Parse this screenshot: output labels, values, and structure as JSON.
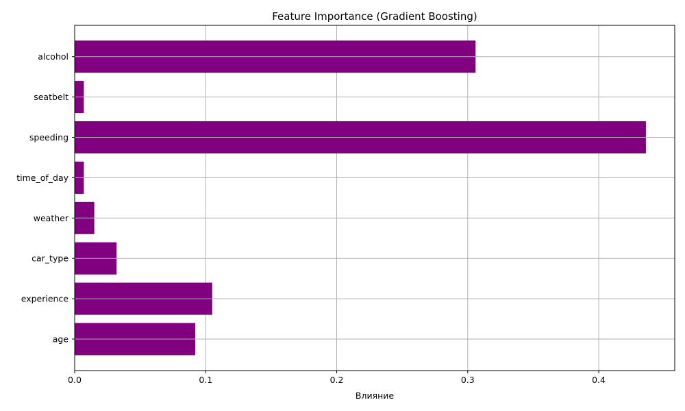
{
  "chart_data": {
    "type": "bar",
    "orientation": "horizontal",
    "title": "Feature Importance (Gradient Boosting)",
    "xlabel": "Влияние",
    "ylabel": "",
    "categories": [
      "age",
      "experience",
      "car_type",
      "weather",
      "time_of_day",
      "speeding",
      "seatbelt",
      "alcohol"
    ],
    "values": [
      0.092,
      0.105,
      0.032,
      0.015,
      0.007,
      0.436,
      0.007,
      0.306
    ],
    "xlim": [
      0,
      0.458
    ],
    "xticks": [
      0.0,
      0.1,
      0.2,
      0.3,
      0.4
    ],
    "xtick_labels": [
      "0.0",
      "0.1",
      "0.2",
      "0.3",
      "0.4"
    ],
    "grid": true,
    "bar_color": "#800080",
    "grid_color": "#b0b0b0"
  }
}
